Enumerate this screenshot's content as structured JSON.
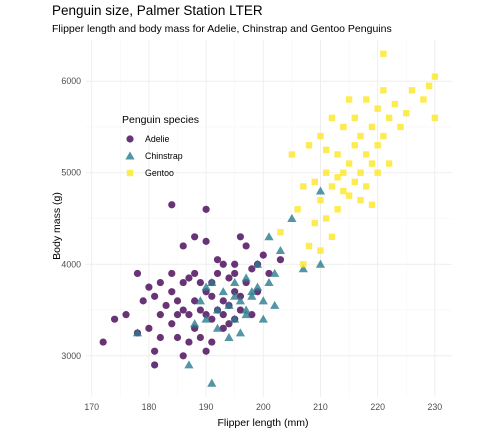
{
  "chart_data": {
    "type": "scatter",
    "title": "Penguin size, Palmer Station LTER",
    "subtitle": "Flipper length and body mass for Adelie, Chinstrap and Gentoo Penguins",
    "xlabel": "Flipper length (mm)",
    "ylabel": "Body mass (g)",
    "xlim": [
      169,
      233
    ],
    "ylim": [
      2550,
      6450
    ],
    "xticks": [
      170,
      180,
      190,
      200,
      210,
      220,
      230
    ],
    "yticks": [
      3000,
      4000,
      5000,
      6000
    ],
    "grid": true,
    "legend": {
      "title": "Penguin species",
      "position": "inside-top-left"
    },
    "series": [
      {
        "name": "Adelie",
        "marker": "circle",
        "color": "#440154",
        "points": [
          [
            172,
            3150
          ],
          [
            174,
            3400
          ],
          [
            176,
            3450
          ],
          [
            178,
            3250
          ],
          [
            178,
            3900
          ],
          [
            179,
            3600
          ],
          [
            180,
            3750
          ],
          [
            180,
            3300
          ],
          [
            181,
            3650
          ],
          [
            181,
            3050
          ],
          [
            181,
            2900
          ],
          [
            182,
            3200
          ],
          [
            182,
            3450
          ],
          [
            182,
            3800
          ],
          [
            183,
            3550
          ],
          [
            184,
            3700
          ],
          [
            184,
            3350
          ],
          [
            184,
            3900
          ],
          [
            184,
            4650
          ],
          [
            185,
            3600
          ],
          [
            185,
            3200
          ],
          [
            185,
            3450
          ],
          [
            186,
            3800
          ],
          [
            186,
            3000
          ],
          [
            186,
            3500
          ],
          [
            186,
            4200
          ],
          [
            187,
            3450
          ],
          [
            187,
            3850
          ],
          [
            187,
            3150
          ],
          [
            188,
            3600
          ],
          [
            188,
            3300
          ],
          [
            188,
            3900
          ],
          [
            188,
            4300
          ],
          [
            189,
            3500
          ],
          [
            189,
            3200
          ],
          [
            189,
            3800
          ],
          [
            190,
            3450
          ],
          [
            190,
            3700
          ],
          [
            190,
            4250
          ],
          [
            190,
            3050
          ],
          [
            190,
            4600
          ],
          [
            191,
            3800
          ],
          [
            191,
            3400
          ],
          [
            191,
            3650
          ],
          [
            191,
            3150
          ],
          [
            192,
            3500
          ],
          [
            192,
            3900
          ],
          [
            192,
            4050
          ],
          [
            193,
            3600
          ],
          [
            193,
            3300
          ],
          [
            193,
            3450
          ],
          [
            193,
            4000
          ],
          [
            194,
            3550
          ],
          [
            194,
            3850
          ],
          [
            194,
            3350
          ],
          [
            195,
            3700
          ],
          [
            195,
            3400
          ],
          [
            195,
            4000
          ],
          [
            195,
            3900
          ],
          [
            196,
            3650
          ],
          [
            196,
            4300
          ],
          [
            196,
            3500
          ],
          [
            197,
            3800
          ],
          [
            197,
            4200
          ],
          [
            198,
            3450
          ],
          [
            198,
            3950
          ],
          [
            199,
            4000
          ],
          [
            199,
            3700
          ],
          [
            200,
            4100
          ],
          [
            201,
            3900
          ],
          [
            203,
            4050
          ]
        ]
      },
      {
        "name": "Chinstrap",
        "marker": "triangle",
        "color": "#287c8e",
        "points": [
          [
            178,
            3250
          ],
          [
            187,
            2900
          ],
          [
            188,
            3350
          ],
          [
            189,
            3600
          ],
          [
            190,
            3400
          ],
          [
            190,
            3750
          ],
          [
            191,
            2700
          ],
          [
            191,
            3800
          ],
          [
            192,
            3500
          ],
          [
            192,
            3300
          ],
          [
            193,
            3700
          ],
          [
            194,
            3550
          ],
          [
            194,
            3200
          ],
          [
            195,
            3800
          ],
          [
            195,
            3400
          ],
          [
            195,
            3650
          ],
          [
            196,
            3600
          ],
          [
            196,
            3250
          ],
          [
            197,
            3850
          ],
          [
            197,
            3500
          ],
          [
            197,
            3450
          ],
          [
            198,
            3700
          ],
          [
            198,
            3650
          ],
          [
            199,
            4000
          ],
          [
            199,
            3750
          ],
          [
            200,
            3600
          ],
          [
            200,
            3400
          ],
          [
            201,
            3800
          ],
          [
            201,
            4300
          ],
          [
            202,
            3900
          ],
          [
            202,
            3550
          ],
          [
            203,
            4150
          ],
          [
            205,
            4500
          ],
          [
            207,
            3950
          ],
          [
            210,
            4000
          ],
          [
            210,
            4800
          ]
        ]
      },
      {
        "name": "Gentoo",
        "marker": "square",
        "color": "#fde725",
        "points": [
          [
            203,
            4350
          ],
          [
            205,
            5200
          ],
          [
            206,
            4600
          ],
          [
            207,
            4000
          ],
          [
            207,
            4850
          ],
          [
            208,
            4200
          ],
          [
            208,
            5300
          ],
          [
            209,
            4900
          ],
          [
            209,
            4450
          ],
          [
            210,
            5400
          ],
          [
            210,
            4700
          ],
          [
            210,
            4150
          ],
          [
            211,
            5000
          ],
          [
            211,
            4500
          ],
          [
            211,
            5250
          ],
          [
            212,
            5600
          ],
          [
            212,
            4850
          ],
          [
            212,
            4300
          ],
          [
            213,
            4950
          ],
          [
            213,
            5200
          ],
          [
            213,
            4600
          ],
          [
            214,
            5500
          ],
          [
            214,
            4800
          ],
          [
            214,
            5000
          ],
          [
            215,
            5100
          ],
          [
            215,
            5800
          ],
          [
            215,
            4750
          ],
          [
            216,
            5300
          ],
          [
            216,
            4900
          ],
          [
            216,
            5600
          ],
          [
            217,
            5000
          ],
          [
            217,
            5400
          ],
          [
            217,
            4700
          ],
          [
            218,
            5800
          ],
          [
            218,
            5200
          ],
          [
            218,
            4850
          ],
          [
            219,
            5500
          ],
          [
            219,
            5100
          ],
          [
            219,
            4650
          ],
          [
            220,
            5700
          ],
          [
            220,
            5300
          ],
          [
            220,
            5000
          ],
          [
            221,
            5400
          ],
          [
            221,
            5900
          ],
          [
            221,
            6300
          ],
          [
            222,
            5100
          ],
          [
            222,
            5600
          ],
          [
            223,
            5750
          ],
          [
            224,
            5500
          ],
          [
            225,
            5650
          ],
          [
            226,
            5900
          ],
          [
            228,
            5800
          ],
          [
            229,
            5950
          ],
          [
            230,
            6050
          ],
          [
            230,
            5600
          ]
        ]
      }
    ]
  }
}
